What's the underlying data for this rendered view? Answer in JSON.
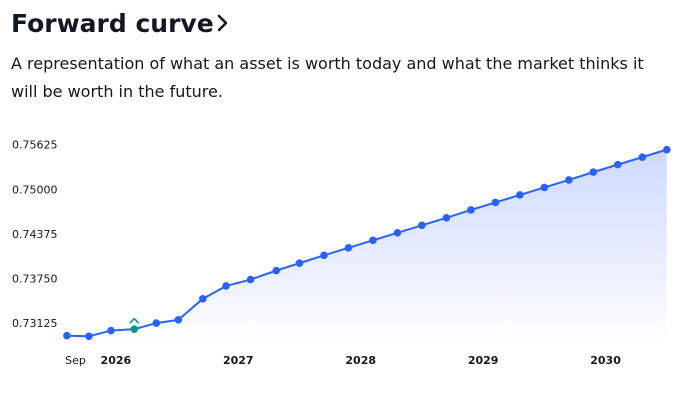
{
  "header": {
    "title": "Forward curve",
    "chevron_icon": "chevron-right-icon",
    "subtitle": "A representation of what an asset is worth today and what the market thinks it will be worth in the future."
  },
  "chart_data": {
    "type": "area",
    "y_ticks": [
      "0.75625",
      "0.75000",
      "0.74375",
      "0.73750",
      "0.73125"
    ],
    "x_ticks": [
      "Sep",
      "2026",
      "2027",
      "2028",
      "2029",
      "2030"
    ],
    "ylim": [
      0.7286,
      0.7569
    ],
    "xlim": [
      2025.56,
      2030.51
    ],
    "grid": false,
    "legend": "none",
    "line_color": "#2962ff",
    "fill_color_top": "#c9d6ff",
    "fill_color_bottom": "#ffffff",
    "highlight_color": "#089981",
    "highlight_index": 3,
    "highlight_marker_icon": "chevron-up-icon",
    "series": [
      {
        "values": [
          {
            "x": 2025.6,
            "y": 0.72948
          },
          {
            "x": 2025.78,
            "y": 0.7294
          },
          {
            "x": 2025.96,
            "y": 0.7302
          },
          {
            "x": 2026.15,
            "y": 0.7304
          },
          {
            "x": 2026.33,
            "y": 0.73125
          },
          {
            "x": 2026.51,
            "y": 0.7317
          },
          {
            "x": 2026.71,
            "y": 0.73465
          },
          {
            "x": 2026.9,
            "y": 0.73645
          },
          {
            "x": 2027.1,
            "y": 0.73735
          },
          {
            "x": 2027.31,
            "y": 0.7386
          },
          {
            "x": 2027.5,
            "y": 0.73965
          },
          {
            "x": 2027.7,
            "y": 0.74075
          },
          {
            "x": 2027.9,
            "y": 0.7418
          },
          {
            "x": 2028.1,
            "y": 0.74285
          },
          {
            "x": 2028.3,
            "y": 0.7439
          },
          {
            "x": 2028.5,
            "y": 0.74495
          },
          {
            "x": 2028.7,
            "y": 0.746
          },
          {
            "x": 2028.9,
            "y": 0.7471
          },
          {
            "x": 2029.1,
            "y": 0.74815
          },
          {
            "x": 2029.3,
            "y": 0.7492
          },
          {
            "x": 2029.5,
            "y": 0.75025
          },
          {
            "x": 2029.7,
            "y": 0.7513
          },
          {
            "x": 2029.9,
            "y": 0.7524
          },
          {
            "x": 2030.1,
            "y": 0.75345
          },
          {
            "x": 2030.3,
            "y": 0.7545
          },
          {
            "x": 2030.5,
            "y": 0.75555
          }
        ]
      }
    ]
  }
}
